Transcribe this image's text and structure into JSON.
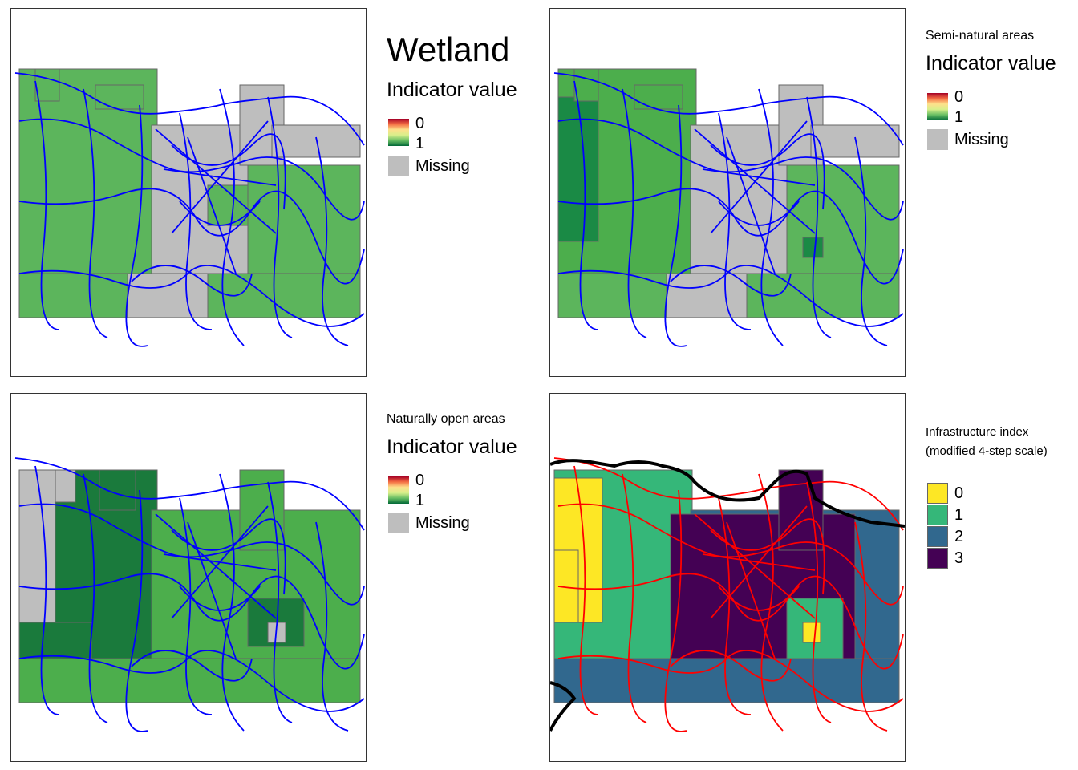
{
  "panels": [
    {
      "id": "wetland",
      "title": "Wetland",
      "legend_title": "Indicator value",
      "legend_items": [
        "0",
        "1",
        "Missing"
      ],
      "road_color": "#0000ff"
    },
    {
      "id": "semi-natural",
      "title": "Semi-natural areas",
      "legend_title": "Indicator value",
      "legend_items": [
        "0",
        "1",
        "Missing"
      ],
      "road_color": "#0000ff"
    },
    {
      "id": "naturally-open",
      "title": "Naturally open areas",
      "legend_title": "Indicator value",
      "legend_items": [
        "0",
        "1",
        "Missing"
      ],
      "road_color": "#0000ff"
    },
    {
      "id": "infrastructure",
      "legend_title_line1": "Infrastructure index",
      "legend_title_line2": "(modified 4-step scale)",
      "legend_items": [
        "0",
        "1",
        "2",
        "3"
      ],
      "legend_colors": [
        "#fde725",
        "#35b779",
        "#31688e",
        "#440154"
      ],
      "road_color": "#ff0000",
      "boundary_color": "#000000"
    }
  ],
  "colors": {
    "missing": "#bebebe",
    "gradient": [
      "#a50026",
      "#f46d43",
      "#fee08b",
      "#d9ef8b",
      "#66bd63",
      "#006837"
    ]
  }
}
